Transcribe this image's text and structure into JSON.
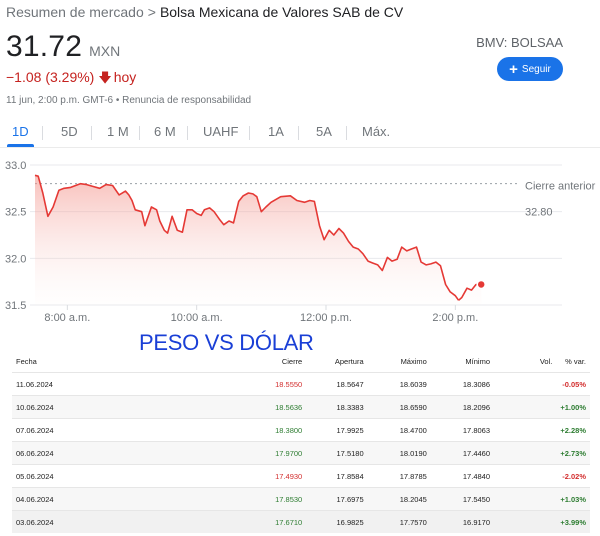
{
  "breadcrumb": {
    "root": "Resumen de mercado",
    "separator": ">",
    "company": "Bolsa Mexicana de Valores SAB de CV"
  },
  "quote": {
    "price": "31.72",
    "currency": "MXN",
    "change": "−1.08 (3.29%)",
    "change_arrow": "arrow-down-icon",
    "change_period": "hoy",
    "meta": "11 jun, 2:00 p.m. GMT-6 • Renuncia de responsabilidad",
    "exchange": "BMV: BOLSAA",
    "follow_label": "Seguir"
  },
  "tabs": [
    "1D",
    "5D",
    "1 M",
    "6 M",
    "UAHF",
    "1A",
    "5A",
    "Máx."
  ],
  "active_tab": "1D",
  "colors": {
    "accent": "#1a73e8",
    "negative": "#c5221f",
    "chart_line": "#e53935",
    "overlay_title": "#1a3fd6"
  },
  "chart_data": {
    "type": "area",
    "y_ticks": [
      "33.0",
      "32.5",
      "32.0",
      "31.5"
    ],
    "ylim": [
      31.5,
      33.0
    ],
    "x_ticks": [
      "8:00 a.m.",
      "10:00 a.m.",
      "12:00 p.m.",
      "2:00 p.m."
    ],
    "previous_close_label": "Cierre anterior",
    "previous_close_value": "32.80",
    "previous_close": 32.8,
    "time_range_hours": [
      7.5,
      15.0
    ],
    "series": [
      {
        "x": [
          7.5,
          7.55,
          7.62,
          7.7,
          7.78,
          7.87,
          7.95,
          8.05,
          8.2,
          8.3,
          8.4,
          8.5,
          8.6,
          8.7,
          8.8,
          8.9,
          8.95,
          9.0,
          9.05,
          9.15,
          9.2,
          9.3,
          9.38,
          9.43,
          9.5,
          9.55,
          9.62,
          9.7,
          9.78,
          9.85,
          9.93,
          10.0,
          10.07,
          10.12,
          10.2,
          10.27,
          10.35,
          10.42,
          10.5,
          10.57,
          10.65,
          10.72,
          10.8,
          10.87,
          10.93,
          11.0,
          11.07,
          11.15,
          11.3,
          11.45,
          11.55,
          11.67,
          11.75,
          11.82,
          11.9,
          11.97,
          12.05,
          12.12,
          12.2,
          12.27,
          12.35,
          12.42,
          12.5,
          12.57,
          12.65,
          12.72,
          12.8,
          12.87,
          12.95,
          13.02,
          13.1,
          13.17,
          13.25,
          13.32,
          13.4,
          13.47,
          13.55,
          13.62,
          13.7,
          13.77,
          13.85,
          13.92,
          14.0,
          14.05
        ],
        "y": [
          32.89,
          32.88,
          32.7,
          32.45,
          32.55,
          32.73,
          32.75,
          32.76,
          32.8,
          32.79,
          32.77,
          32.75,
          32.79,
          32.78,
          32.68,
          32.72,
          32.68,
          32.62,
          32.52,
          32.5,
          32.35,
          32.55,
          32.52,
          32.4,
          32.3,
          32.27,
          32.45,
          32.3,
          32.28,
          32.52,
          32.52,
          32.48,
          32.46,
          32.52,
          32.54,
          32.5,
          32.42,
          32.36,
          32.4,
          32.38,
          32.61,
          32.67,
          32.7,
          32.69,
          32.66,
          32.5,
          32.55,
          32.6,
          32.66,
          32.67,
          32.62,
          32.6,
          32.62,
          32.61,
          32.35,
          32.2,
          32.3,
          32.25,
          32.32,
          32.27,
          32.18,
          32.12,
          32.1,
          32.05,
          31.97,
          31.95,
          31.93,
          31.87,
          32.01,
          31.97,
          31.99,
          32.12,
          32.08,
          32.1,
          32.12,
          31.96,
          31.93,
          31.94,
          31.96,
          31.92,
          31.72,
          31.64,
          31.6,
          31.55
        ]
      },
      {
        "x": [
          14.05,
          14.1,
          14.18,
          14.25,
          14.32,
          14.4
        ],
        "y": [
          31.55,
          31.58,
          31.68,
          31.66,
          31.72,
          31.72
        ]
      }
    ]
  },
  "overlay_title": "PESO VS DÓLAR",
  "table": {
    "headers": [
      "Fecha",
      "Cierre",
      "Apertura",
      "Máximo",
      "Mínimo",
      "Vol.",
      "% var."
    ],
    "rows": [
      {
        "date": "11.06.2024",
        "close": "18.5550",
        "open": "18.5647",
        "high": "18.6039",
        "low": "18.3086",
        "vol": "",
        "change": "-0.05%",
        "close_dir": "neg",
        "change_dir": "neg"
      },
      {
        "date": "10.06.2024",
        "close": "18.5636",
        "open": "18.3383",
        "high": "18.6590",
        "low": "18.2096",
        "vol": "",
        "change": "+1.00%",
        "close_dir": "pos",
        "change_dir": "pos"
      },
      {
        "date": "07.06.2024",
        "close": "18.3800",
        "open": "17.9925",
        "high": "18.4700",
        "low": "17.8063",
        "vol": "",
        "change": "+2.28%",
        "close_dir": "pos",
        "change_dir": "pos"
      },
      {
        "date": "06.06.2024",
        "close": "17.9700",
        "open": "17.5180",
        "high": "18.0190",
        "low": "17.4460",
        "vol": "",
        "change": "+2.73%",
        "close_dir": "pos",
        "change_dir": "pos"
      },
      {
        "date": "05.06.2024",
        "close": "17.4930",
        "open": "17.8584",
        "high": "17.8785",
        "low": "17.4840",
        "vol": "",
        "change": "-2.02%",
        "close_dir": "neg",
        "change_dir": "neg"
      },
      {
        "date": "04.06.2024",
        "close": "17.8530",
        "open": "17.6975",
        "high": "18.2045",
        "low": "17.5450",
        "vol": "",
        "change": "+1.03%",
        "close_dir": "pos",
        "change_dir": "pos"
      },
      {
        "date": "03.06.2024",
        "close": "17.6710",
        "open": "16.9825",
        "high": "17.7570",
        "low": "16.9170",
        "vol": "",
        "change": "+3.99%",
        "close_dir": "pos",
        "change_dir": "pos"
      }
    ]
  }
}
